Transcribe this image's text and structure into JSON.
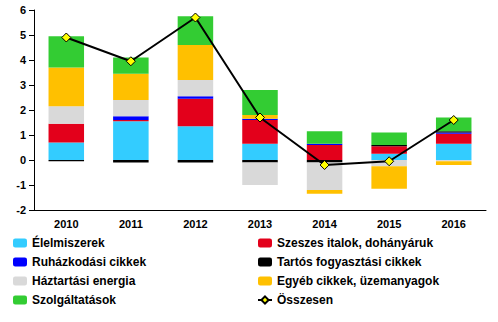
{
  "chart_data": {
    "type": "bar",
    "stacked": true,
    "grid": false,
    "legend": "bottom",
    "categories": [
      "2010",
      "2011",
      "2012",
      "2013",
      "2014",
      "2015",
      "2016"
    ],
    "ylim": [
      -2,
      6
    ],
    "yticks": [
      -2,
      -1,
      0,
      1,
      2,
      3,
      4,
      5,
      6
    ],
    "series": [
      {
        "name": "Élelmiszerek",
        "color": "#33CCFF",
        "values": [
          0.7,
          1.55,
          1.35,
          0.65,
          0,
          0.25,
          0.65
        ]
      },
      {
        "name": "Szeszes italok, dohányáruk",
        "color": "#E3001B",
        "values": [
          0.75,
          0.05,
          1.1,
          0.95,
          0.6,
          0.3,
          0.4
        ]
      },
      {
        "name": "Ruházkodási cikkek",
        "color": "#0000FF",
        "values": [
          0,
          0.15,
          0.1,
          0.05,
          0.05,
          0,
          0.05
        ]
      },
      {
        "name": "Tartós fogyasztási cikkek",
        "color": "#000000",
        "values": [
          -0.05,
          -0.1,
          -0.1,
          -0.1,
          -0.1,
          0.05,
          0.05
        ]
      },
      {
        "name": "Háztartási energia",
        "color": "#D9D9D9",
        "values": [
          0.7,
          0.65,
          0.65,
          -0.9,
          -1.1,
          -0.25,
          -0.05
        ]
      },
      {
        "name": "Egyéb cikkek, üzemanyagok",
        "color": "#FFC000",
        "values": [
          1.55,
          1.05,
          1.4,
          0.15,
          -0.15,
          -0.9,
          -0.15
        ]
      },
      {
        "name": "Szolgáltatások",
        "color": "#33CC33",
        "values": [
          1.25,
          0.65,
          1.15,
          1.0,
          0.5,
          0.5,
          0.55
        ]
      },
      {
        "name": "Összesen",
        "type": "line",
        "color": "#000000",
        "marker": "diamond",
        "values": [
          4.9,
          3.95,
          5.7,
          1.7,
          -0.2,
          -0.05,
          1.6
        ]
      }
    ]
  }
}
